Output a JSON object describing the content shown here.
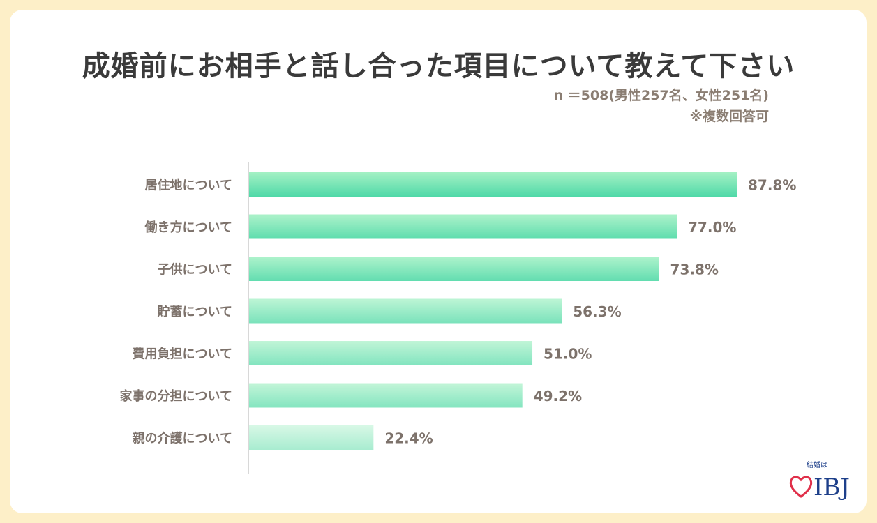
{
  "title": "成婚前にお相手と話し合った項目について教えて下さい",
  "note_sample": "n ＝508(男性257名、女性251名)",
  "note_multi": "※複数回答可",
  "logo": {
    "tagline": "結婚は",
    "brand": "IBJ",
    "icon": "heart-outline-icon"
  },
  "colors": {
    "background": "#fdefc8",
    "bar_top": "#9af0be",
    "bar_bottom": "#3ed6a0",
    "bar_light_top": "#d8f8e6",
    "bar_light_bottom": "#a8ecd0",
    "label": "#7d726b",
    "axis": "#cccccc",
    "logo_red": "#e0304a",
    "logo_blue": "#1d3f8a"
  },
  "chart_data": {
    "type": "bar",
    "orientation": "horizontal",
    "categories": [
      "居住地について",
      "働き方について",
      "子供について",
      "貯蓄について",
      "費用負担について",
      "家事の分担について",
      "親の介護について"
    ],
    "values": [
      87.8,
      77.0,
      73.8,
      56.3,
      51.0,
      49.2,
      22.4
    ],
    "value_labels": [
      "87.8%",
      "77.0%",
      "73.8%",
      "56.3%",
      "51.0%",
      "49.2%",
      "22.4%"
    ],
    "unit": "%",
    "xlim": [
      0,
      100
    ],
    "grid": false
  }
}
